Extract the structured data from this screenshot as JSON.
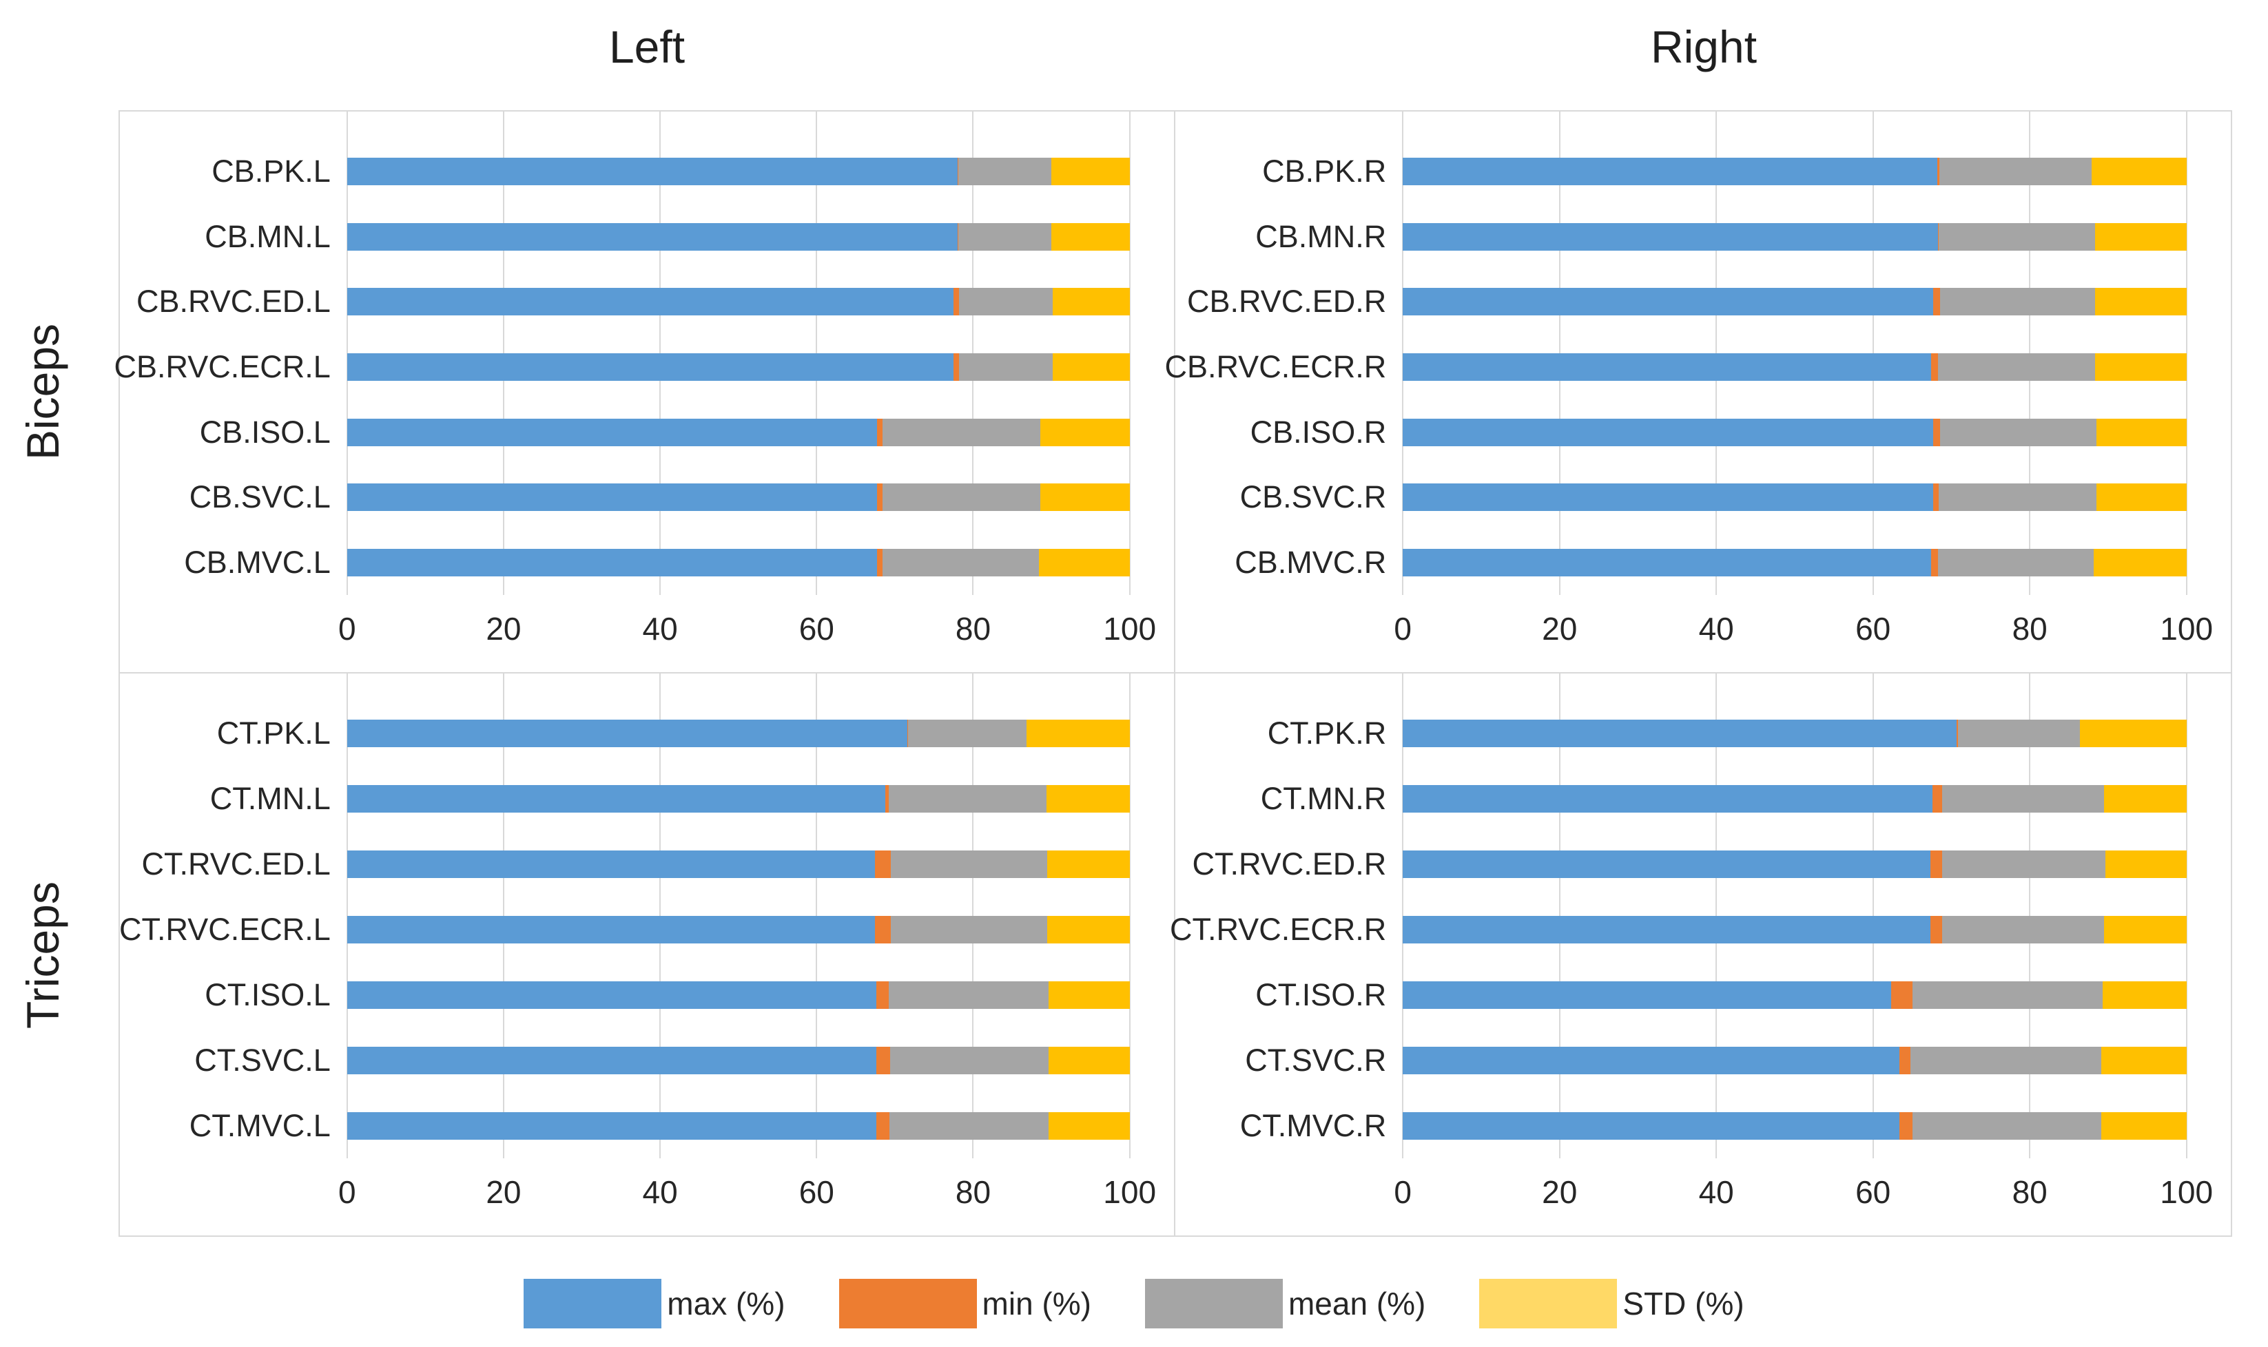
{
  "titles": {
    "left": "Left",
    "right": "Right"
  },
  "side_labels": {
    "top": "Biceps",
    "bottom": "Triceps"
  },
  "colors": {
    "max": "#5B9BD5",
    "min": "#ED7D31",
    "mean": "#A5A5A5",
    "std": "#FFC000",
    "legend_std": "#FFD966"
  },
  "legend": {
    "items": [
      {
        "label": "max (%)",
        "color": "#5B9BD5"
      },
      {
        "label": "min (%)",
        "color": "#ED7D31"
      },
      {
        "label": "mean (%)",
        "color": "#A5A5A5"
      },
      {
        "label": "STD (%)",
        "color": "#FFD966"
      }
    ]
  },
  "chart_data": {
    "type": "bar",
    "stacked": true,
    "orientation": "horizontal",
    "units": "percent",
    "x_axis": {
      "range": [
        0,
        100
      ],
      "ticks": [
        0,
        20,
        40,
        60,
        80,
        100
      ],
      "grid": true
    },
    "series_names": [
      "max (%)",
      "min (%)",
      "mean (%)",
      "STD (%)"
    ],
    "panels": [
      {
        "id": "biceps-left",
        "muscle": "Biceps",
        "side": "Left",
        "rows": [
          {
            "label": "CB.PK.L",
            "values": {
              "max": 78.0,
              "min": 0.1,
              "mean": 11.9,
              "std": 10.0
            }
          },
          {
            "label": "CB.MN.L",
            "values": {
              "max": 78.0,
              "min": 0.1,
              "mean": 11.9,
              "std": 10.0
            }
          },
          {
            "label": "CB.RVC.ED.L",
            "values": {
              "max": 77.5,
              "min": 0.7,
              "mean": 12.0,
              "std": 9.8
            }
          },
          {
            "label": "CB.RVC.ECR.L",
            "values": {
              "max": 77.5,
              "min": 0.7,
              "mean": 12.0,
              "std": 9.8
            }
          },
          {
            "label": "CB.ISO.L",
            "values": {
              "max": 67.7,
              "min": 0.7,
              "mean": 20.2,
              "std": 11.4
            }
          },
          {
            "label": "CB.SVC.L",
            "values": {
              "max": 67.7,
              "min": 0.7,
              "mean": 20.2,
              "std": 11.4
            }
          },
          {
            "label": "CB.MVC.L",
            "values": {
              "max": 67.7,
              "min": 0.7,
              "mean": 20.0,
              "std": 11.6
            }
          }
        ]
      },
      {
        "id": "biceps-right",
        "muscle": "Biceps",
        "side": "Right",
        "rows": [
          {
            "label": "CB.PK.R",
            "values": {
              "max": 68.2,
              "min": 0.3,
              "mean": 19.4,
              "std": 12.1
            }
          },
          {
            "label": "CB.MN.R",
            "values": {
              "max": 68.3,
              "min": 0.1,
              "mean": 19.9,
              "std": 11.7
            }
          },
          {
            "label": "CB.RVC.ED.R",
            "values": {
              "max": 67.7,
              "min": 0.9,
              "mean": 19.7,
              "std": 11.7
            }
          },
          {
            "label": "CB.RVC.ECR.R",
            "values": {
              "max": 67.4,
              "min": 0.9,
              "mean": 20.0,
              "std": 11.7
            }
          },
          {
            "label": "CB.ISO.R",
            "values": {
              "max": 67.7,
              "min": 0.9,
              "mean": 19.9,
              "std": 11.5
            }
          },
          {
            "label": "CB.SVC.R",
            "values": {
              "max": 67.7,
              "min": 0.7,
              "mean": 20.1,
              "std": 11.5
            }
          },
          {
            "label": "CB.MVC.R",
            "values": {
              "max": 67.4,
              "min": 0.9,
              "mean": 19.9,
              "std": 11.8
            }
          }
        ]
      },
      {
        "id": "triceps-left",
        "muscle": "Triceps",
        "side": "Left",
        "rows": [
          {
            "label": "CT.PK.L",
            "values": {
              "max": 71.6,
              "min": 0.1,
              "mean": 15.1,
              "std": 13.2
            }
          },
          {
            "label": "CT.MN.L",
            "values": {
              "max": 68.8,
              "min": 0.4,
              "mean": 20.2,
              "std": 10.6
            }
          },
          {
            "label": "CT.RVC.ED.L",
            "values": {
              "max": 67.5,
              "min": 2.0,
              "mean": 20.0,
              "std": 10.5
            }
          },
          {
            "label": "CT.RVC.ECR.L",
            "values": {
              "max": 67.5,
              "min": 2.0,
              "mean": 20.0,
              "std": 10.5
            }
          },
          {
            "label": "CT.ISO.L",
            "values": {
              "max": 67.6,
              "min": 1.6,
              "mean": 20.4,
              "std": 10.4
            }
          },
          {
            "label": "CT.SVC.L",
            "values": {
              "max": 67.6,
              "min": 1.8,
              "mean": 20.2,
              "std": 10.4
            }
          },
          {
            "label": "CT.MVC.L",
            "values": {
              "max": 67.6,
              "min": 1.7,
              "mean": 20.3,
              "std": 10.4
            }
          }
        ]
      },
      {
        "id": "triceps-right",
        "muscle": "Triceps",
        "side": "Right",
        "rows": [
          {
            "label": "CT.PK.R",
            "values": {
              "max": 70.7,
              "min": 0.1,
              "mean": 15.6,
              "std": 13.6
            }
          },
          {
            "label": "CT.MN.R",
            "values": {
              "max": 67.6,
              "min": 1.2,
              "mean": 20.7,
              "std": 10.5
            }
          },
          {
            "label": "CT.RVC.ED.R",
            "values": {
              "max": 67.3,
              "min": 1.5,
              "mean": 20.9,
              "std": 10.3
            }
          },
          {
            "label": "CT.RVC.ECR.R",
            "values": {
              "max": 67.3,
              "min": 1.5,
              "mean": 20.7,
              "std": 10.5
            }
          },
          {
            "label": "CT.ISO.R",
            "values": {
              "max": 62.3,
              "min": 2.7,
              "mean": 24.3,
              "std": 10.7
            }
          },
          {
            "label": "CT.SVC.R",
            "values": {
              "max": 63.4,
              "min": 1.4,
              "mean": 24.3,
              "std": 10.9
            }
          },
          {
            "label": "CT.MVC.R",
            "values": {
              "max": 63.4,
              "min": 1.6,
              "mean": 24.1,
              "std": 10.9
            }
          }
        ]
      }
    ]
  }
}
